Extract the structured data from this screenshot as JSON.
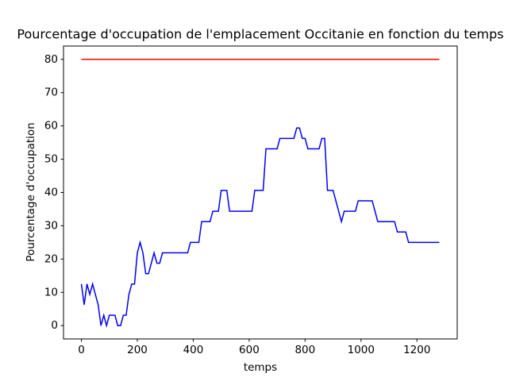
{
  "chart_data": {
    "type": "line",
    "title": "Pourcentage d'occupation de l'emplacement Occitanie en fonction du temps",
    "xlabel": "temps",
    "ylabel": "Pourcentage d'occupation",
    "xlim": [
      -64,
      1344
    ],
    "ylim": [
      -4,
      84
    ],
    "xticks": [
      0,
      200,
      400,
      600,
      800,
      1000,
      1200
    ],
    "yticks": [
      0,
      10,
      20,
      30,
      40,
      50,
      60,
      70,
      80
    ],
    "grid": false,
    "series": [
      {
        "color": "#ff0000",
        "x": [
          0,
          1280
        ],
        "values": [
          80,
          80
        ]
      },
      {
        "color": "#0000ff",
        "x": [
          0,
          10,
          20,
          30,
          40,
          50,
          60,
          70,
          80,
          90,
          100,
          120,
          130,
          140,
          150,
          160,
          170,
          180,
          190,
          200,
          210,
          220,
          230,
          240,
          250,
          260,
          270,
          280,
          290,
          380,
          390,
          420,
          430,
          460,
          470,
          490,
          500,
          520,
          530,
          610,
          620,
          650,
          660,
          700,
          710,
          760,
          770,
          780,
          790,
          800,
          810,
          850,
          860,
          870,
          880,
          900,
          930,
          940,
          980,
          990,
          1040,
          1060,
          1120,
          1130,
          1160,
          1170,
          1280
        ],
        "values": [
          12.5,
          6.25,
          12.5,
          9.375,
          12.5,
          9.375,
          6.25,
          0,
          3.125,
          0,
          3.125,
          3.125,
          0,
          0,
          3.125,
          3.125,
          9.375,
          12.5,
          12.5,
          21.875,
          25,
          21.875,
          15.625,
          15.625,
          18.75,
          21.875,
          18.75,
          18.75,
          21.875,
          21.875,
          25,
          25,
          31.25,
          31.25,
          34.375,
          34.375,
          40.625,
          40.625,
          34.375,
          34.375,
          40.625,
          40.625,
          53.125,
          53.125,
          56.25,
          56.25,
          59.375,
          59.375,
          56.25,
          56.25,
          53.125,
          53.125,
          56.25,
          56.25,
          40.625,
          40.625,
          31.25,
          34.375,
          34.375,
          37.5,
          37.5,
          31.25,
          31.25,
          28.125,
          28.125,
          25,
          25
        ]
      }
    ]
  }
}
